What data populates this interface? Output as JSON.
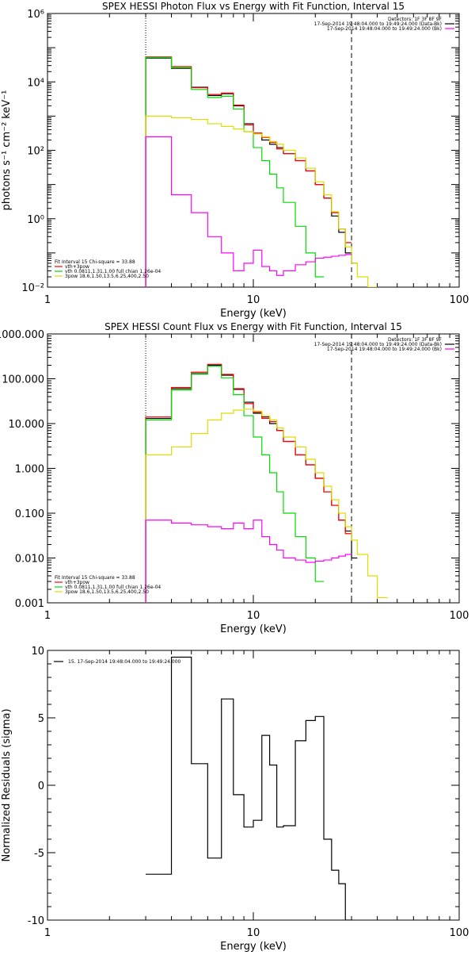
{
  "chart_data": [
    {
      "type": "line",
      "title": "SPEX HESSI Photon Flux vs Energy with Fit Function, Interval 15",
      "xlabel": "Energy (keV)",
      "ylabel": "photons s⁻¹ cm⁻² keV⁻¹",
      "xscale": "log",
      "yscale": "log",
      "xlim": [
        1,
        100
      ],
      "ylim": [
        0.01,
        1000000
      ],
      "xticks": [
        {
          "v": 1,
          "label": "1"
        },
        {
          "v": 10,
          "label": "10"
        },
        {
          "v": 100,
          "label": "100"
        }
      ],
      "yticks": [
        {
          "v": 0.01,
          "label": "10⁻²"
        },
        {
          "v": 1,
          "label": "10⁰"
        },
        {
          "v": 100,
          "label": "10²"
        },
        {
          "v": 10000,
          "label": "10⁴"
        },
        {
          "v": 1000000,
          "label": "10⁶"
        }
      ],
      "vlines": [
        {
          "x": 3,
          "style": "dotted"
        },
        {
          "x": 30,
          "style": "dashed"
        }
      ],
      "legend_top": [
        "Detectors: 1F 3F 8F 9F",
        "17-Sep-2014 19:48:04.000 to 19:49:24.000 (Data-Bk)",
        "17-Sep-2014 19:48:04.000 to 19:49:24.000 (Bk)"
      ],
      "legend_bottom": [
        "Fit Interval 15   Chi-square = 33.88",
        "vth+3pow",
        "vth 0.0811,1.31,1.00  full chian 1.26e-04",
        "3pow 18.6,1.50,13.5,6.25,400,2.50"
      ],
      "legend_placement": "top-right and bottom-left",
      "edges": [
        3,
        4,
        5,
        6,
        7,
        8,
        9,
        10,
        11,
        12,
        13,
        14,
        16,
        18,
        20,
        22,
        24,
        26,
        28,
        30,
        32,
        36,
        40,
        45
      ],
      "series": [
        {
          "name": "Data-Bk",
          "color": "#000000",
          "values": [
            50000,
            25000,
            7000,
            4000,
            4500,
            2000,
            600,
            300,
            200,
            150,
            120,
            80,
            50,
            25,
            10,
            4,
            1.2,
            0.4,
            0.1,
            0.05,
            null,
            null,
            null
          ]
        },
        {
          "name": "vth+3pow",
          "color": "#ff0000",
          "values": [
            54000,
            28000,
            6800,
            4300,
            4700,
            2100,
            550,
            320,
            240,
            170,
            110,
            80,
            50,
            25,
            10,
            4,
            1.5,
            0.5,
            0.2,
            null,
            null,
            null,
            null
          ]
        },
        {
          "name": "vth",
          "color": "#00dd00",
          "values": [
            52000,
            26000,
            6000,
            3500,
            3800,
            1600,
            350,
            120,
            50,
            20,
            8,
            3,
            0.6,
            0.1,
            0.02,
            null,
            null,
            null,
            null,
            null,
            null,
            null,
            null
          ]
        },
        {
          "name": "3pow",
          "color": "#dddd00",
          "values": [
            1000,
            900,
            800,
            600,
            500,
            420,
            350,
            300,
            250,
            180,
            150,
            100,
            60,
            30,
            12,
            5,
            1.6,
            0.5,
            0.15,
            0.05,
            0.02,
            0.01,
            null
          ]
        },
        {
          "name": "Bk",
          "color": "#ff00ff",
          "values": [
            250,
            5,
            1.5,
            0.3,
            0.1,
            0.03,
            0.05,
            0.12,
            0.04,
            0.03,
            0.022,
            0.03,
            0.045,
            0.055,
            0.07,
            0.075,
            0.08,
            0.085,
            0.09,
            null,
            null,
            null,
            null
          ]
        }
      ]
    },
    {
      "type": "line",
      "title": "SPEX HESSI Count Flux vs Energy with Fit Function, Interval 15",
      "xlabel": "Energy (keV)",
      "ylabel": "",
      "xscale": "log",
      "yscale": "log",
      "xlim": [
        1,
        100
      ],
      "ylim": [
        0.001,
        1000
      ],
      "xticks": [
        {
          "v": 1,
          "label": "1"
        },
        {
          "v": 10,
          "label": "10"
        },
        {
          "v": 100,
          "label": "100"
        }
      ],
      "yticks": [
        {
          "v": 0.001,
          "label": "0.001"
        },
        {
          "v": 0.01,
          "label": "0.010"
        },
        {
          "v": 0.1,
          "label": "0.100"
        },
        {
          "v": 1,
          "label": "1.000"
        },
        {
          "v": 10,
          "label": "10.000"
        },
        {
          "v": 100,
          "label": "100.000"
        },
        {
          "v": 1000,
          "label": "1000.000"
        }
      ],
      "vlines": [
        {
          "x": 3,
          "style": "dotted"
        },
        {
          "x": 30,
          "style": "dashed"
        }
      ],
      "legend_top": [
        "Detectors: 1F 3F 8F 9F",
        "17-Sep-2014 19:48:04.000 to 19:49:24.000 (Data-Bk)",
        "17-Sep-2014 19:48:04.000 to 19:49:24.000 (Bk)"
      ],
      "legend_bottom": [
        "Fit Interval 15   Chi-square = 33.88",
        "vth+3pow",
        "vth 0.0811,1.31,1.00  full chian 1.26e-04",
        "3pow 18.6,1.50,13.5,6.25,400,2.50"
      ],
      "legend_placement": "top-right and bottom-left",
      "edges": [
        3,
        4,
        5,
        6,
        7,
        8,
        9,
        10,
        11,
        12,
        13,
        14,
        16,
        18,
        20,
        22,
        24,
        26,
        28,
        30,
        32,
        36,
        40,
        45
      ],
      "series": [
        {
          "name": "Data-Bk",
          "color": "#000000",
          "values": [
            13,
            60,
            130,
            200,
            120,
            58,
            30,
            17,
            14,
            10,
            7,
            4,
            2,
            1.2,
            0.6,
            0.3,
            0.15,
            0.07,
            0.04,
            0.01,
            null,
            null,
            null
          ]
        },
        {
          "name": "vth+3pow",
          "color": "#ff0000",
          "values": [
            14,
            64,
            140,
            210,
            125,
            60,
            28,
            18,
            13,
            11,
            7,
            4,
            2,
            1.2,
            0.6,
            0.3,
            0.15,
            0.07,
            0.035,
            null,
            null,
            null,
            null
          ]
        },
        {
          "name": "vth",
          "color": "#00dd00",
          "values": [
            12,
            56,
            126,
            190,
            105,
            44,
            15,
            5,
            2,
            0.8,
            0.3,
            0.1,
            0.03,
            0.01,
            0.003,
            null,
            null,
            null,
            null,
            null,
            null,
            null,
            null
          ]
        },
        {
          "name": "3pow",
          "color": "#dddd00",
          "values": [
            2,
            3,
            6,
            12,
            17,
            20,
            21,
            19,
            15,
            12,
            8,
            5,
            3,
            1.6,
            0.8,
            0.4,
            0.2,
            0.1,
            0.05,
            0.025,
            0.012,
            0.004,
            0.0013
          ]
        },
        {
          "name": "Bk",
          "color": "#ff00ff",
          "values": [
            0.07,
            0.06,
            0.055,
            0.05,
            0.045,
            0.06,
            0.045,
            0.07,
            0.03,
            0.02,
            0.015,
            0.01,
            0.009,
            0.008,
            0.0085,
            0.009,
            0.01,
            0.011,
            0.012,
            null,
            null,
            null,
            null
          ]
        }
      ]
    },
    {
      "type": "line",
      "title": "",
      "xlabel": "Energy (keV)",
      "ylabel": "Normalized Residuals (sigma)",
      "xscale": "log",
      "yscale": "linear",
      "xlim": [
        1,
        100
      ],
      "ylim": [
        -10,
        10
      ],
      "xticks": [
        {
          "v": 1,
          "label": "1"
        },
        {
          "v": 10,
          "label": "10"
        },
        {
          "v": 100,
          "label": "100"
        }
      ],
      "yticks": [
        {
          "v": -10,
          "label": "-10"
        },
        {
          "v": -5,
          "label": "-5"
        },
        {
          "v": 0,
          "label": "0"
        },
        {
          "v": 5,
          "label": "5"
        },
        {
          "v": 10,
          "label": "10"
        }
      ],
      "legend_top": [
        "15. 17-Sep-2014 19:48:04.000 to 19:49:24.000"
      ],
      "legend_placement": "top-left",
      "edges": [
        3,
        4,
        5,
        6,
        7,
        8,
        9,
        10,
        11,
        12,
        13,
        14,
        16,
        18,
        20,
        22,
        24,
        26,
        28,
        30
      ],
      "series": [
        {
          "name": "15. 17-Sep-2014 19:48:04.000 to 19:49:24.000",
          "color": "#000000",
          "values": [
            -6.6,
            9.5,
            1.6,
            -5.4,
            6.4,
            -0.7,
            -3.1,
            -2.6,
            3.7,
            1.5,
            -3.1,
            -3,
            3.3,
            4.8,
            5.1,
            -4,
            -6.3,
            -7.3,
            -10
          ]
        }
      ]
    }
  ]
}
